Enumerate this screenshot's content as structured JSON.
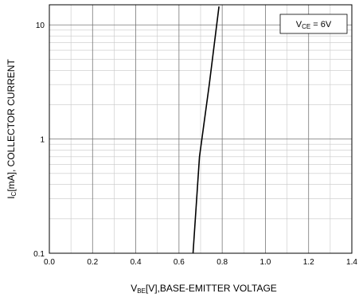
{
  "chart_data": {
    "type": "line",
    "xlabel": {
      "main": "V",
      "sub": "BE",
      "rest": "[V],BASE-EMITTER VOLTAGE"
    },
    "ylabel": {
      "main": "I",
      "sub": "C",
      "rest": "[mA], COLLECTOR CURRENT"
    },
    "annotation": {
      "main": "V",
      "sub": "CE",
      "rest": " = 6V"
    },
    "xlim": [
      0.0,
      1.4
    ],
    "ylim": [
      0.1,
      15
    ],
    "yscale": "log",
    "grid": true,
    "x_ticks": [
      {
        "value": 0.0,
        "label": "0.0"
      },
      {
        "value": 0.2,
        "label": "0.2"
      },
      {
        "value": 0.4,
        "label": "0.4"
      },
      {
        "value": 0.6,
        "label": "0.6"
      },
      {
        "value": 0.8,
        "label": "0.8"
      },
      {
        "value": 1.0,
        "label": "1.0"
      },
      {
        "value": 1.2,
        "label": "1.2"
      },
      {
        "value": 1.4,
        "label": "1.4"
      }
    ],
    "y_ticks": [
      {
        "value": 0.1,
        "label": "0.1"
      },
      {
        "value": 1,
        "label": "1"
      },
      {
        "value": 10,
        "label": "10"
      }
    ],
    "series": [
      {
        "color": "#000000",
        "x": [
          0.665,
          0.695,
          0.74,
          0.785
        ],
        "y": [
          0.1,
          0.7,
          3.0,
          14.5
        ]
      }
    ]
  }
}
